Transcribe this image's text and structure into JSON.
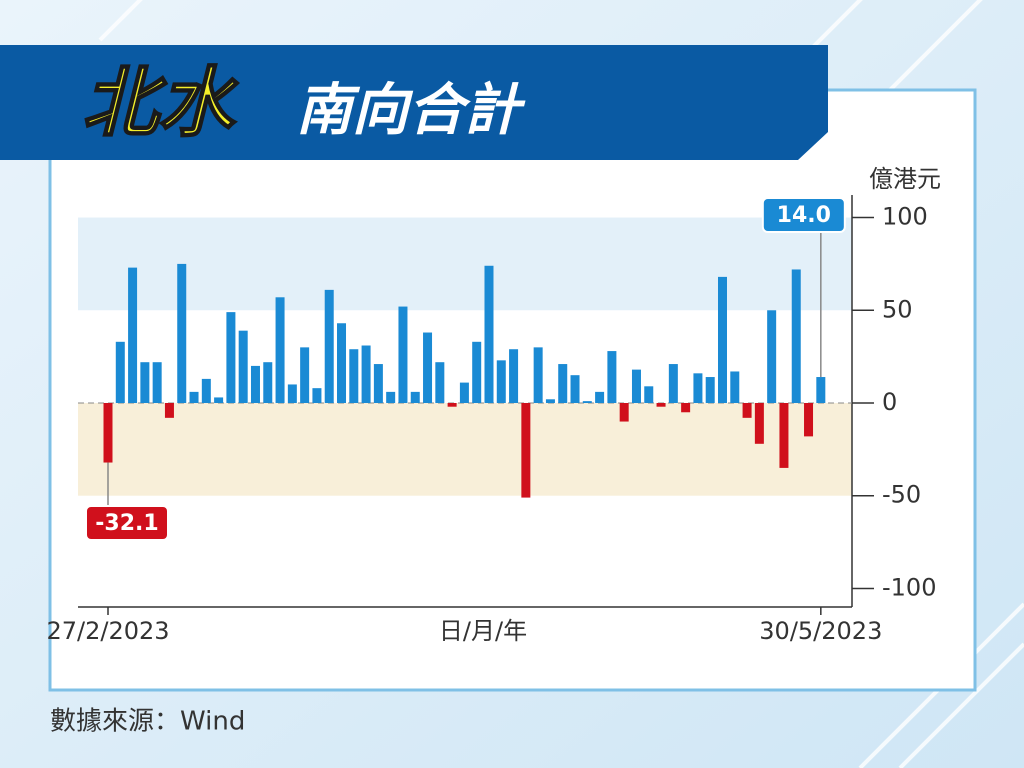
{
  "chart_data": {
    "type": "bar",
    "title": "北水",
    "subtitle": "南向合計",
    "y_label": "億港元",
    "x_label": "日/月/年",
    "source": "數據來源：Wind",
    "categories": [
      "27/2/2023",
      null,
      null,
      null,
      null,
      null,
      null,
      null,
      null,
      null,
      null,
      null,
      null,
      null,
      null,
      null,
      null,
      null,
      null,
      null,
      null,
      null,
      null,
      null,
      null,
      null,
      null,
      null,
      null,
      null,
      null,
      null,
      null,
      null,
      null,
      null,
      null,
      null,
      null,
      null,
      null,
      null,
      null,
      null,
      null,
      null,
      null,
      null,
      null,
      null,
      null,
      null,
      null,
      null,
      null,
      null,
      null,
      null,
      "30/5/2023"
    ],
    "values": [
      -32.1,
      33,
      73,
      22,
      22,
      -8,
      75,
      6,
      13,
      3,
      49,
      39,
      20,
      22,
      57,
      10,
      30,
      8,
      61,
      43,
      29,
      31,
      21,
      6,
      52,
      6,
      38,
      22,
      -2,
      11,
      33,
      74,
      23,
      29,
      -51,
      30,
      2,
      21,
      15,
      1,
      6,
      28,
      -10,
      18,
      9,
      -2,
      21,
      -5,
      16,
      14,
      68,
      17,
      -8,
      -22,
      50,
      -35,
      72,
      -18,
      14.0
    ],
    "value_labels": [
      "-32.1",
      null,
      null,
      null,
      null,
      null,
      null,
      null,
      null,
      null,
      null,
      null,
      null,
      null,
      null,
      null,
      null,
      null,
      null,
      null,
      null,
      null,
      null,
      null,
      null,
      null,
      null,
      null,
      null,
      null,
      null,
      null,
      null,
      null,
      null,
      null,
      null,
      null,
      null,
      null,
      null,
      null,
      null,
      null,
      null,
      null,
      null,
      null,
      null,
      null,
      null,
      null,
      null,
      null,
      null,
      null,
      null,
      null,
      "14.0"
    ],
    "positive_color": "#1a8ad4",
    "negative_color": "#d0101c",
    "bands": [
      {
        "from": 50,
        "to": 100,
        "color": "#e3f0f9"
      },
      {
        "from": -50,
        "to": 0,
        "color": "#f8efd9"
      }
    ],
    "ylim": [
      -110,
      110
    ],
    "yticks": [
      100,
      50,
      0,
      -50,
      -100
    ]
  }
}
